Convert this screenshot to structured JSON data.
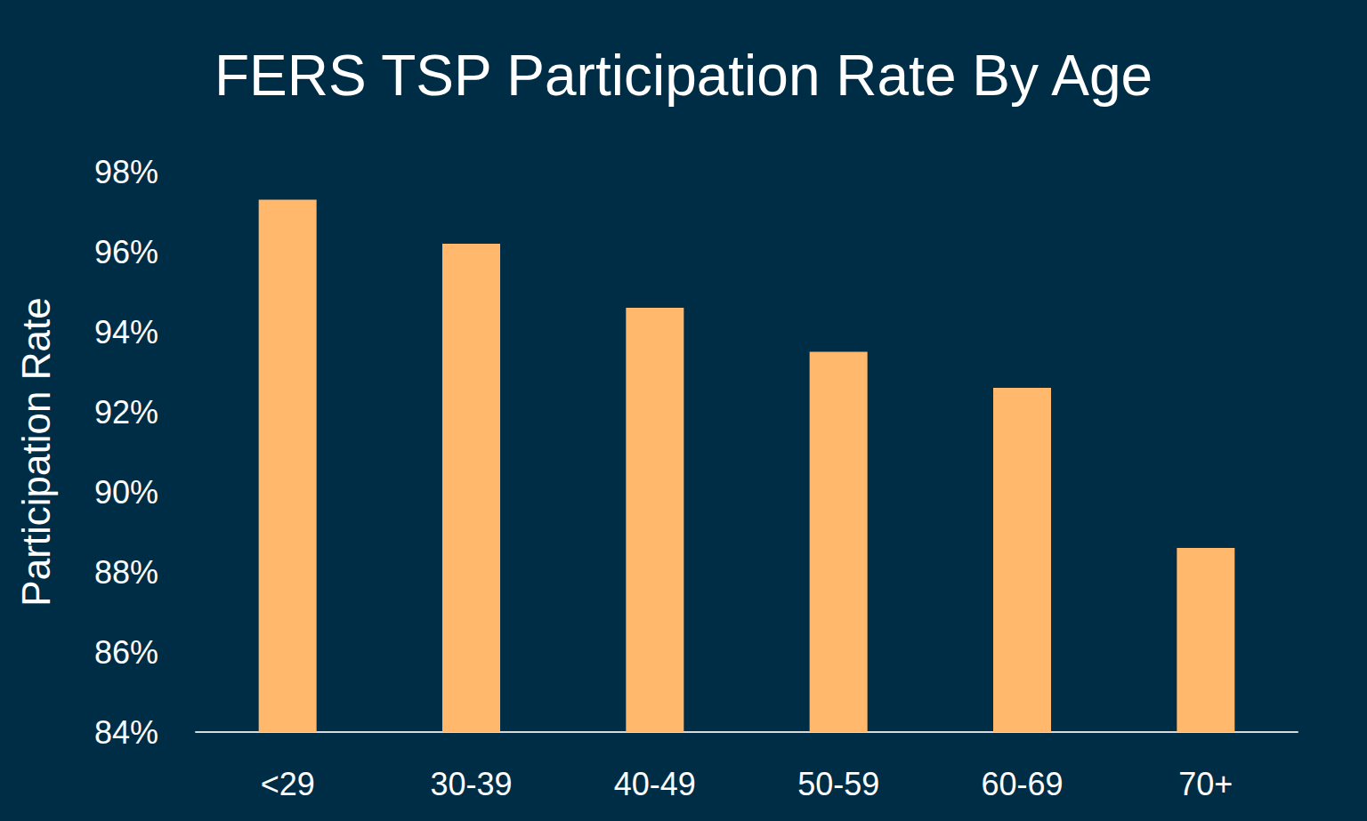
{
  "chart_data": {
    "type": "bar",
    "title": "FERS TSP Participation Rate By Age",
    "y_label": "Participation Rate",
    "categories": [
      "<29",
      "30-39",
      "40-49",
      "50-59",
      "60-69",
      "70+"
    ],
    "values": [
      97.3,
      96.2,
      94.6,
      93.5,
      92.6,
      88.6
    ],
    "color": "#ffb86c",
    "ylim": [
      84,
      98
    ],
    "yticks": [
      {
        "value": 84,
        "label": "84%"
      },
      {
        "value": 86,
        "label": "86%"
      },
      {
        "value": 88,
        "label": "88%"
      },
      {
        "value": 90,
        "label": "90%"
      },
      {
        "value": 92,
        "label": "92%"
      },
      {
        "value": 94,
        "label": "94%"
      },
      {
        "value": 96,
        "label": "96%"
      },
      {
        "value": 98,
        "label": "98%"
      }
    ],
    "grid": false
  }
}
